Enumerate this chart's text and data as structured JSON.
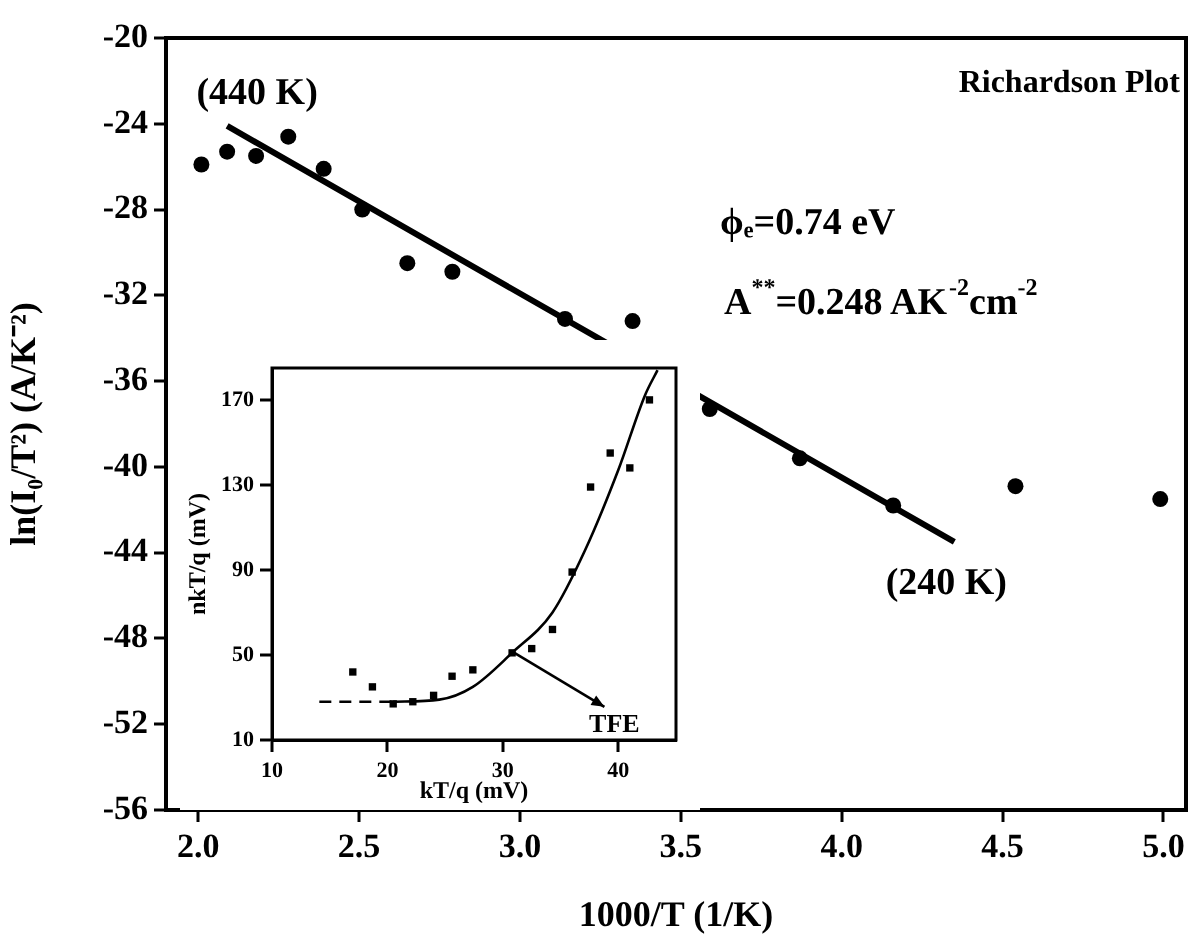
{
  "chart_data": [
    {
      "type": "scatter",
      "title": "Richardson Plot",
      "xlabel": "1000/T (1/K)",
      "ylabel": "ln(I₀/T²) (A/K⁻²)",
      "xlim": [
        1.9,
        5.07
      ],
      "ylim": [
        -56,
        -20
      ],
      "xticks": [
        {
          "value": 2,
          "label": "2.0"
        },
        {
          "value": 2.5,
          "label": "2.5"
        },
        {
          "value": 3,
          "label": "3.0"
        },
        {
          "value": 3.5,
          "label": "3.5"
        },
        {
          "value": 4,
          "label": "4.0"
        },
        {
          "value": 4.5,
          "label": "4.5"
        },
        {
          "value": 5,
          "label": "5.0"
        }
      ],
      "yticks": [
        -56,
        -52,
        -48,
        -44,
        -40,
        -36,
        -32,
        -28,
        -24,
        -20
      ],
      "marker": "circle",
      "grid": false,
      "legend": false,
      "series": [
        {
          "type": "scatter",
          "color": "#000000",
          "x": [
            2.01,
            2.09,
            2.18,
            2.28,
            2.39,
            2.51,
            2.65,
            2.79,
            3.14,
            3.35,
            3.59,
            3.87,
            4.16,
            4.54,
            4.99
          ],
          "values": [
            -25.9,
            -25.3,
            -25.5,
            -24.6,
            -26.1,
            -28.0,
            -30.5,
            -30.9,
            -33.1,
            -33.2,
            -37.3,
            -39.6,
            -41.8,
            -40.9,
            -41.5
          ]
        },
        {
          "type": "line",
          "color": "#000000",
          "marker": "none",
          "x": [
            2.09,
            4.35
          ],
          "values": [
            -24.1,
            -43.5
          ]
        }
      ],
      "annotations": [
        {
          "text": "(440 K)",
          "x": 2.09,
          "y": -24.1
        },
        {
          "text": "(240 K)",
          "x": 4.35,
          "y": -43.5
        },
        "ϕₑ=0.74 eV",
        "A$^{**}$=0.248 AK$^{-2}$cm$^{-2}$"
      ]
    },
    {
      "type": "scatter",
      "xlabel": "kT/q (mV)",
      "ylabel": "nkT/q (mV)",
      "xlim": [
        10,
        45
      ],
      "ylim": [
        10,
        185
      ],
      "xticks": [
        10,
        20,
        30,
        40
      ],
      "yticks": [
        10,
        50,
        90,
        130,
        170
      ],
      "marker": "square",
      "grid": false,
      "legend": false,
      "series": [
        {
          "type": "scatter",
          "color": "#000000",
          "x": [
            17.0,
            18.7,
            20.5,
            22.2,
            24.0,
            25.6,
            27.4,
            30.8,
            32.5,
            34.3,
            36.0,
            37.6,
            39.3,
            41.0,
            42.7
          ],
          "values": [
            42,
            35,
            27,
            28,
            31,
            40,
            43,
            51,
            53,
            62,
            89,
            129,
            145,
            138,
            170
          ]
        },
        {
          "type": "line",
          "color": "#000000",
          "marker": "none",
          "x": [
            20.5,
            24.5,
            27.4,
            30.8,
            34.3,
            37.1,
            40.0,
            42.3,
            43.4
          ],
          "values": [
            28,
            29,
            35,
            51,
            70,
            99,
            137,
            172,
            184
          ]
        },
        {
          "type": "line",
          "color": "#000000",
          "marker": "none",
          "line_style": "dashed",
          "x": [
            14.1,
            20.5
          ],
          "values": [
            28,
            28
          ]
        }
      ],
      "annotations": [
        {
          "text": "TFE",
          "x": 31,
          "y": 51
        }
      ]
    }
  ]
}
